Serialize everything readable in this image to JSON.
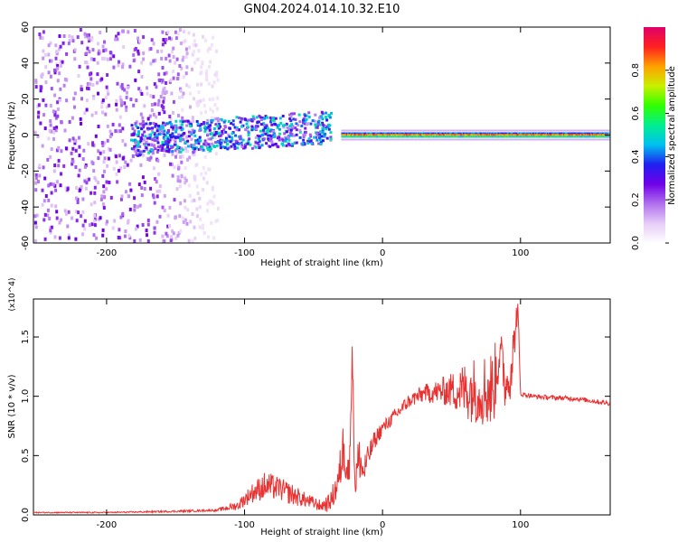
{
  "title": "GN04.2024.014.10.32.E10",
  "chart_data": [
    {
      "type": "heatmap",
      "xlabel": "Height of straight line (km)",
      "ylabel": "Frequency (Hz)",
      "xlim": [
        -253,
        165
      ],
      "ylim": [
        -60,
        60
      ],
      "xticks": [
        -200,
        -100,
        0,
        100
      ],
      "xtick_labels": [
        "-200",
        "-100",
        "0",
        "100"
      ],
      "yticks": [
        -60,
        -40,
        -20,
        0,
        20,
        40,
        60
      ],
      "ytick_labels": [
        "-60",
        "-40",
        "-20",
        "0",
        "20",
        "40",
        "60"
      ],
      "colorbar": {
        "label": "Normalized spectral amplitude",
        "range": [
          0,
          1
        ],
        "ticks": [
          0.0,
          0.2,
          0.4,
          0.6,
          0.8
        ],
        "tick_labels": [
          "0.0",
          "0.2",
          "0.4",
          "0.6",
          "0.8"
        ],
        "colors": [
          "#ffffff",
          "#e6ccf7",
          "#b070ee",
          "#7000e8",
          "#2020f0",
          "#00c0f0",
          "#00ee90",
          "#30ff00",
          "#c8f000",
          "#ffa000",
          "#ff2020",
          "#e0006a"
        ]
      },
      "zones": [
        {
          "x_range": [
            -253,
            -120
          ],
          "freq_range": [
            -60,
            60
          ],
          "character": "broadband scattered noise",
          "amplitude": 0.2
        },
        {
          "x_range": [
            -183,
            -38
          ],
          "freq_range": [
            -8,
            10
          ],
          "character": "frequency band with drift",
          "amplitude": 0.45
        },
        {
          "x_range": [
            -30,
            165
          ],
          "freq_range": [
            -3,
            3
          ],
          "character": "narrow carrier line",
          "amplitude": 0.9
        }
      ]
    },
    {
      "type": "line",
      "xlabel": "Height of straight line (km)",
      "ylabel": "SNR (10 * v/v)",
      "y_multiplier": "(x10^4)",
      "xlim": [
        -253,
        165
      ],
      "ylim": [
        0,
        1.82
      ],
      "xticks": [
        -200,
        -100,
        0,
        100
      ],
      "xtick_labels": [
        "-200",
        "-100",
        "0",
        "100"
      ],
      "yticks": [
        0,
        0.5,
        1.0,
        1.5
      ],
      "ytick_labels": [
        "0.0",
        "0.5",
        "1.0",
        "1.5"
      ],
      "color": "#e83232",
      "series": [
        {
          "x": [
            -253,
            -200,
            -150,
            -120,
            -105,
            -95,
            -85,
            -75,
            -65,
            -55,
            -45,
            -38,
            -32,
            -28,
            -24,
            -22,
            -20,
            -17,
            -14,
            -10,
            -5,
            0,
            10,
            20,
            30,
            40,
            50,
            60,
            70,
            80,
            85,
            90,
            95,
            98,
            100,
            110,
            120,
            140,
            165
          ],
          "y": [
            0.02,
            0.02,
            0.03,
            0.04,
            0.08,
            0.18,
            0.25,
            0.22,
            0.17,
            0.12,
            0.08,
            0.1,
            0.28,
            0.6,
            0.3,
            1.42,
            0.25,
            0.5,
            0.35,
            0.5,
            0.65,
            0.73,
            0.85,
            0.97,
            1.02,
            1.04,
            1.05,
            1.05,
            1.06,
            1.05,
            1.38,
            1.05,
            1.4,
            1.78,
            1.02,
            1.0,
            0.99,
            0.98,
            0.94
          ],
          "noise_envelope": [
            0.005,
            0.005,
            0.008,
            0.01,
            0.04,
            0.08,
            0.12,
            0.1,
            0.09,
            0.06,
            0.05,
            0.08,
            0.15,
            0.25,
            0.2,
            0.1,
            0.2,
            0.2,
            0.15,
            0.1,
            0.08,
            0.06,
            0.06,
            0.06,
            0.08,
            0.1,
            0.15,
            0.25,
            0.3,
            0.35,
            0.2,
            0.3,
            0.2,
            0.1,
            0.02,
            0.02,
            0.02,
            0.02,
            0.02
          ]
        }
      ]
    }
  ]
}
